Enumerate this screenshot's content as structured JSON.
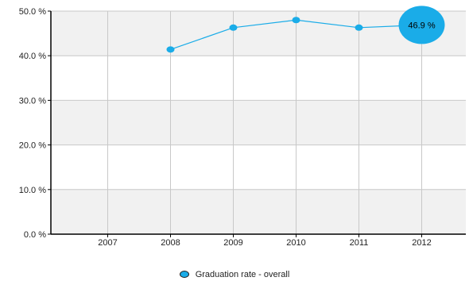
{
  "chart_data": {
    "type": "line",
    "categories": [
      "2007",
      "2008",
      "2009",
      "2010",
      "2011",
      "2012"
    ],
    "series": [
      {
        "name": "Graduation rate - overall",
        "values": [
          null,
          41.4,
          46.3,
          48.0,
          46.3,
          46.9
        ]
      }
    ],
    "yticks": [
      "0.0 %",
      "10.0 %",
      "20.0 %",
      "30.0 %",
      "40.0 %",
      "50.0 %"
    ],
    "ylim": [
      0,
      50
    ],
    "grid": true,
    "highlight": {
      "category": "2012",
      "label": "46.9 %"
    },
    "legend_position": "bottom",
    "colors": {
      "series": "#1aace8",
      "band": "#f1f1f1",
      "grid": "#c8c8c8",
      "axis": "#000000"
    }
  }
}
